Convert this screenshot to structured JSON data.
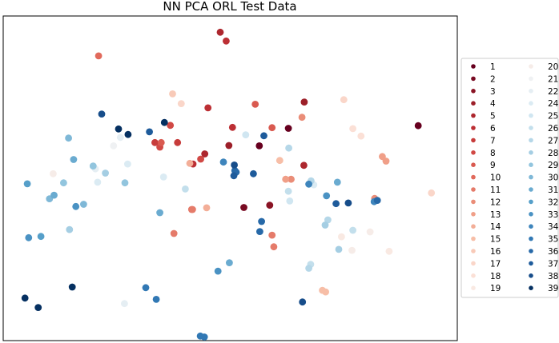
{
  "chart_data": {
    "type": "scatter",
    "title": "NN PCA ORL Test Data",
    "xlabel": "",
    "ylabel": "",
    "axes_ticks_visible": false,
    "grid": false,
    "legend_placement": "right",
    "legend_columns": 2,
    "colormap": "RdBu",
    "series": [
      {
        "name": "1",
        "color": "#67001f",
        "points": [
          [
            0.914,
            0.338
          ],
          [
            0.628,
            0.346
          ],
          [
            0.564,
            0.4
          ]
        ]
      },
      {
        "name": "2",
        "color": "#780a22",
        "points": [
          [
            0.53,
            0.59
          ]
        ]
      },
      {
        "name": "3",
        "color": "#8a1425",
        "points": [
          [
            0.587,
            0.583
          ]
        ]
      },
      {
        "name": "4",
        "color": "#9c1f29",
        "points": [
          [
            0.663,
            0.265
          ],
          [
            0.497,
            0.399
          ]
        ]
      },
      {
        "name": "5",
        "color": "#ad272e",
        "points": [
          [
            0.478,
            0.05
          ],
          [
            0.662,
            0.46
          ],
          [
            0.444,
            0.425
          ]
        ]
      },
      {
        "name": "6",
        "color": "#bc2f34",
        "points": [
          [
            0.491,
            0.077
          ],
          [
            0.505,
            0.343
          ],
          [
            0.451,
            0.283
          ],
          [
            0.418,
            0.456
          ]
        ]
      },
      {
        "name": "7",
        "color": "#c73c3b",
        "points": [
          [
            0.384,
            0.39
          ],
          [
            0.334,
            0.39
          ]
        ]
      },
      {
        "name": "8",
        "color": "#d14945",
        "points": [
          [
            0.368,
            0.337
          ],
          [
            0.435,
            0.441
          ],
          [
            0.345,
            0.404
          ]
        ]
      },
      {
        "name": "9",
        "color": "#d95a50",
        "points": [
          [
            0.555,
            0.272
          ],
          [
            0.592,
            0.344
          ],
          [
            0.348,
            0.39
          ]
        ]
      },
      {
        "name": "10",
        "color": "#e16a5c",
        "points": [
          [
            0.21,
            0.123
          ]
        ]
      },
      {
        "name": "11",
        "color": "#e57b6a",
        "points": [
          [
            0.592,
            0.675
          ],
          [
            0.376,
            0.67
          ],
          [
            0.596,
            0.711
          ],
          [
            0.415,
            0.596
          ],
          [
            0.417,
            0.596
          ]
        ]
      },
      {
        "name": "12",
        "color": "#ea8d78",
        "points": [
          [
            0.818,
            0.562
          ],
          [
            0.634,
            0.503
          ],
          [
            0.658,
            0.312
          ]
        ]
      },
      {
        "name": "13",
        "color": "#f09f88",
        "points": [
          [
            0.843,
            0.447
          ],
          [
            0.622,
            0.503
          ],
          [
            0.835,
            0.433
          ]
        ]
      },
      {
        "name": "14",
        "color": "#f3ae98",
        "points": [
          [
            0.411,
            0.454
          ],
          [
            0.448,
            0.591
          ]
        ]
      },
      {
        "name": "15",
        "color": "#f7bea7",
        "points": [
          [
            0.703,
            0.845
          ],
          [
            0.71,
            0.85
          ],
          [
            0.609,
            0.445
          ]
        ]
      },
      {
        "name": "16",
        "color": "#f8cab8",
        "points": [
          [
            0.373,
            0.24
          ]
        ]
      },
      {
        "name": "17",
        "color": "#fad6c9",
        "points": [
          [
            0.392,
            0.27
          ],
          [
            0.943,
            0.545
          ],
          [
            0.75,
            0.258
          ]
        ]
      },
      {
        "name": "18",
        "color": "#fbe0d6",
        "points": [
          [
            0.77,
            0.347
          ],
          [
            0.788,
            0.37
          ]
        ]
      },
      {
        "name": "19",
        "color": "#f9e9e2",
        "points": [
          [
            0.745,
            0.68
          ],
          [
            0.85,
            0.725
          ]
        ]
      },
      {
        "name": "20",
        "color": "#f6ece8",
        "points": [
          [
            0.768,
            0.722
          ],
          [
            0.11,
            0.486
          ],
          [
            0.808,
            0.665
          ]
        ]
      },
      {
        "name": "21",
        "color": "#eff1f3",
        "points": [
          [
            0.243,
            0.4
          ]
        ]
      },
      {
        "name": "22",
        "color": "#e5eef3",
        "points": [
          [
            0.267,
            0.886
          ],
          [
            0.203,
            0.471
          ],
          [
            0.258,
            0.374
          ]
        ]
      },
      {
        "name": "24",
        "color": "#dbebf3",
        "points": [
          [
            0.353,
            0.496
          ],
          [
            0.274,
            0.456
          ],
          [
            0.208,
            0.512
          ],
          [
            0.684,
            0.52
          ]
        ]
      },
      {
        "name": "25",
        "color": "#d0e6f1",
        "points": [
          [
            0.534,
            0.366
          ],
          [
            0.631,
            0.57
          ]
        ]
      },
      {
        "name": "26",
        "color": "#c3dfec",
        "points": [
          [
            0.628,
            0.54
          ],
          [
            0.77,
            0.66
          ],
          [
            0.677,
            0.765
          ],
          [
            0.401,
            0.533
          ]
        ]
      },
      {
        "name": "27",
        "color": "#b5d7e8",
        "points": [
          [
            0.673,
            0.777
          ],
          [
            0.629,
            0.407
          ],
          [
            0.678,
            0.508
          ],
          [
            0.715,
            0.628
          ]
        ]
      },
      {
        "name": "28",
        "color": "#a5cee3",
        "points": [
          [
            0.146,
            0.658
          ],
          [
            0.225,
            0.484
          ],
          [
            0.739,
            0.719
          ],
          [
            0.709,
            0.644
          ]
        ]
      },
      {
        "name": "29",
        "color": "#92c5de",
        "points": [
          [
            0.198,
            0.462
          ],
          [
            0.133,
            0.514
          ],
          [
            0.268,
            0.514
          ]
        ]
      },
      {
        "name": "30",
        "color": "#7fb8d7",
        "points": [
          [
            0.144,
            0.376
          ],
          [
            0.177,
            0.58
          ],
          [
            0.102,
            0.563
          ]
        ]
      },
      {
        "name": "31",
        "color": "#6aabd0",
        "points": [
          [
            0.155,
            0.442
          ],
          [
            0.112,
            0.552
          ],
          [
            0.736,
            0.512
          ],
          [
            0.498,
            0.76
          ],
          [
            0.345,
            0.606
          ]
        ]
      },
      {
        "name": "32",
        "color": "#569fc9",
        "points": [
          [
            0.053,
            0.517
          ],
          [
            0.083,
            0.679
          ]
        ]
      },
      {
        "name": "33",
        "color": "#4a92c3",
        "points": [
          [
            0.056,
            0.683
          ],
          [
            0.473,
            0.786
          ],
          [
            0.16,
            0.587
          ],
          [
            0.712,
            0.554
          ]
        ]
      },
      {
        "name": "34",
        "color": "#3e85bc",
        "points": [
          [
            0.673,
            0.518
          ],
          [
            0.817,
            0.572
          ],
          [
            0.485,
            0.45
          ]
        ]
      },
      {
        "name": "35",
        "color": "#3178b4",
        "points": [
          [
            0.434,
            0.986
          ],
          [
            0.314,
            0.837
          ],
          [
            0.337,
            0.873
          ],
          [
            0.443,
            0.989
          ]
        ]
      },
      {
        "name": "36",
        "color": "#2769a8",
        "points": [
          [
            0.824,
            0.568
          ],
          [
            0.565,
            0.664
          ],
          [
            0.569,
            0.633
          ],
          [
            0.513,
            0.481
          ],
          [
            0.51,
            0.476
          ]
        ]
      },
      {
        "name": "37",
        "color": "#1e5b9b",
        "points": [
          [
            0.551,
            0.486
          ],
          [
            0.322,
            0.357
          ],
          [
            0.574,
            0.369
          ],
          [
            0.733,
            0.578
          ],
          [
            0.508,
            0.492
          ]
        ]
      },
      {
        "name": "38",
        "color": "#174d8a",
        "points": [
          [
            0.217,
            0.302
          ],
          [
            0.76,
            0.576
          ],
          [
            0.509,
            0.459
          ],
          [
            0.659,
            0.881
          ]
        ]
      },
      {
        "name": "39",
        "color": "#053061",
        "points": [
          [
            0.275,
            0.365
          ],
          [
            0.077,
            0.898
          ],
          [
            0.048,
            0.869
          ],
          [
            0.254,
            0.348
          ],
          [
            0.152,
            0.835
          ],
          [
            0.355,
            0.328
          ]
        ]
      }
    ]
  }
}
